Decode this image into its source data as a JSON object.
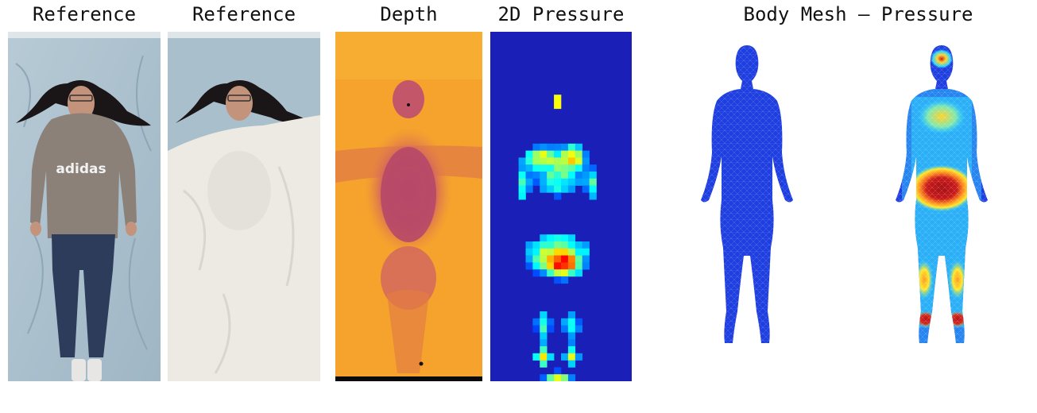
{
  "titles": {
    "reference_1": "Reference",
    "reference_2": "Reference",
    "depth": "Depth",
    "pressure_2d": "2D Pressure",
    "body_mesh": "Body Mesh – Pressure"
  },
  "graphic_text": {
    "hoodie_logo": "adidas"
  },
  "colors": {
    "mattress": "#a9bfcc",
    "sheet": "#eceae3",
    "depth_bg": "#f5a32d",
    "depth_body": "#c8596a",
    "pressure_bg": "#1a1fb8",
    "mesh_blue": "#1f3ee0",
    "hot_red": "#b4141a"
  }
}
